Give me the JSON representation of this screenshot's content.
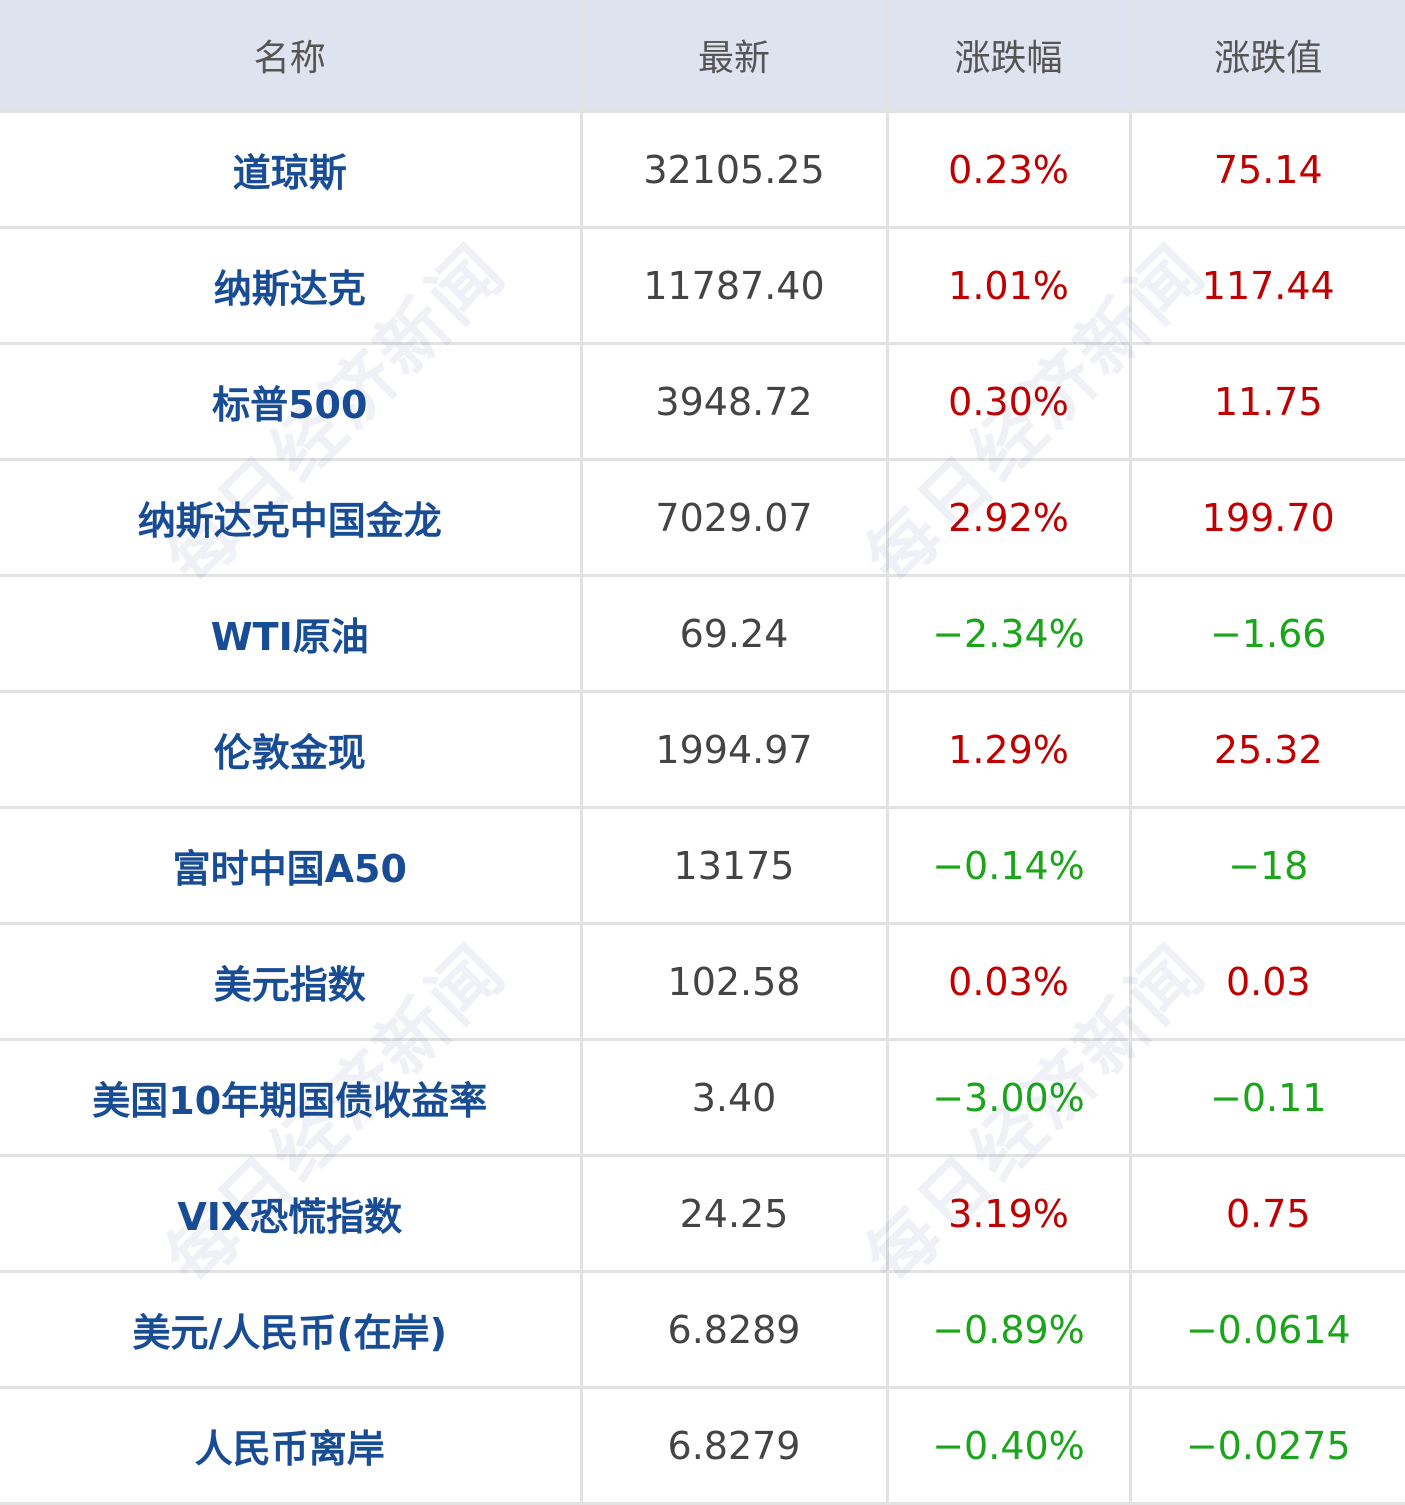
{
  "headers": [
    "名称",
    "最新",
    "涨跌幅",
    "涨跌值"
  ],
  "colors": {
    "header_bg": "#dfe3f0",
    "name": "#184c94",
    "up": "#c00000",
    "down": "#1aa51a"
  },
  "watermark": "每日经济新闻",
  "rows": [
    {
      "name": "道琼斯",
      "last": "32105.25",
      "pct": "0.23%",
      "chg": "75.14",
      "dir": "up"
    },
    {
      "name": "纳斯达克",
      "last": "11787.40",
      "pct": "1.01%",
      "chg": "117.44",
      "dir": "up"
    },
    {
      "name": "标普500",
      "last": "3948.72",
      "pct": "0.30%",
      "chg": "11.75",
      "dir": "up"
    },
    {
      "name": "纳斯达克中国金龙",
      "last": "7029.07",
      "pct": "2.92%",
      "chg": "199.70",
      "dir": "up"
    },
    {
      "name": "WTI原油",
      "last": "69.24",
      "pct": "−2.34%",
      "chg": "−1.66",
      "dir": "down"
    },
    {
      "name": "伦敦金现",
      "last": "1994.97",
      "pct": "1.29%",
      "chg": "25.32",
      "dir": "up"
    },
    {
      "name": "富时中国A50",
      "last": "13175",
      "pct": "−0.14%",
      "chg": "−18",
      "dir": "down"
    },
    {
      "name": "美元指数",
      "last": "102.58",
      "pct": "0.03%",
      "chg": "0.03",
      "dir": "up"
    },
    {
      "name": "美国10年期国债收益率",
      "last": "3.40",
      "pct": "−3.00%",
      "chg": "−0.11",
      "dir": "down"
    },
    {
      "name": "VIX恐慌指数",
      "last": "24.25",
      "pct": "3.19%",
      "chg": "0.75",
      "dir": "up"
    },
    {
      "name": "美元/人民币(在岸)",
      "last": "6.8289",
      "pct": "−0.89%",
      "chg": "−0.0614",
      "dir": "down"
    },
    {
      "name": "人民币离岸",
      "last": "6.8279",
      "pct": "−0.40%",
      "chg": "−0.0275",
      "dir": "down"
    }
  ]
}
